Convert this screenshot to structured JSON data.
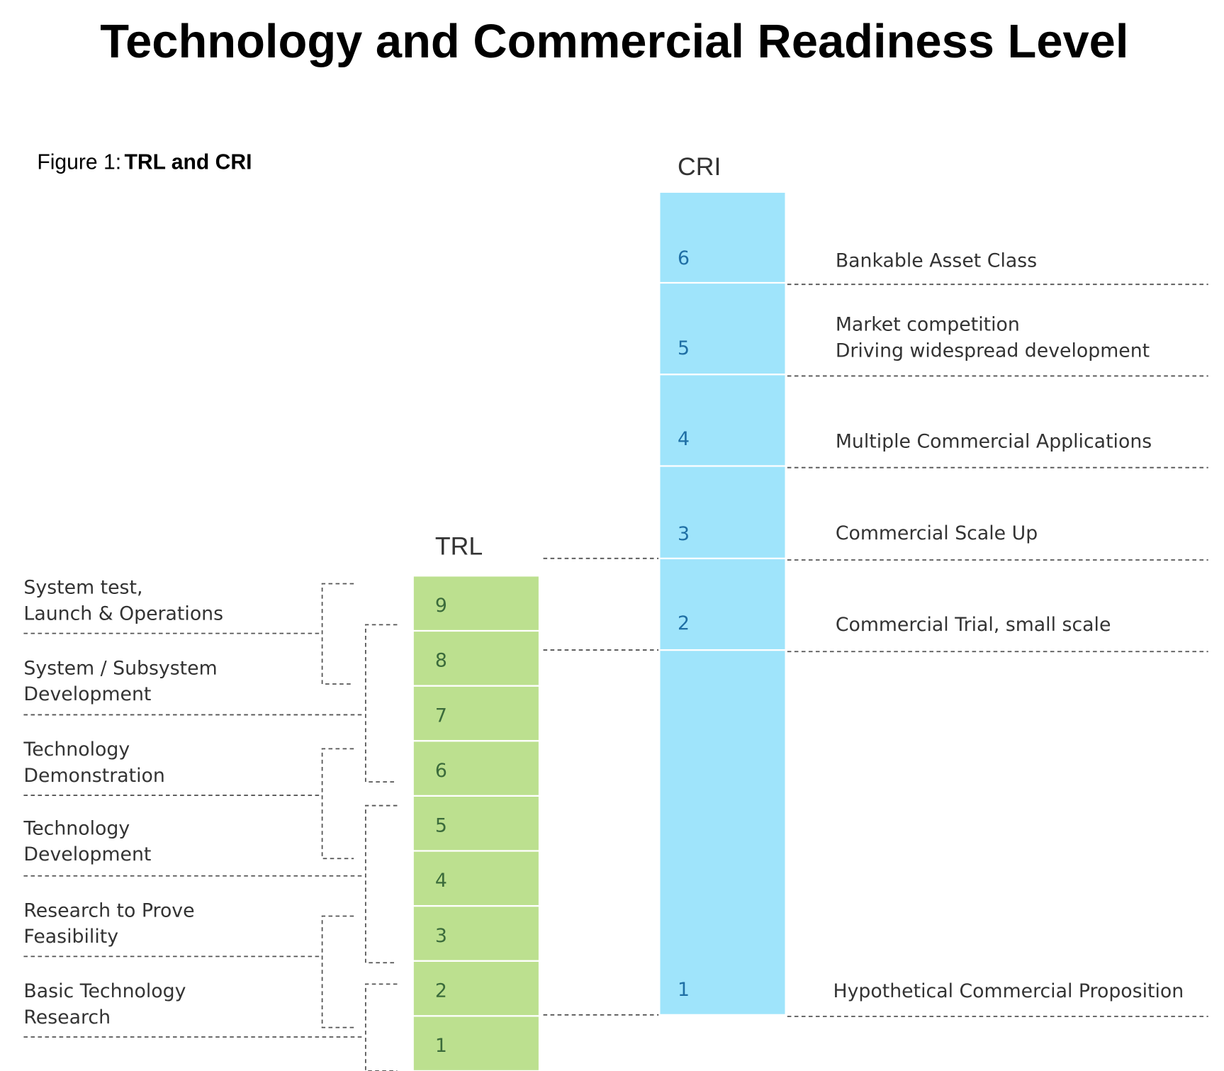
{
  "title": "Technology and Commercial Readiness Level",
  "figure": {
    "prefix": "Figure 1:",
    "name": "TRL and CRI"
  },
  "cri": {
    "label": "CRI",
    "levels": [
      1,
      2,
      3,
      4,
      5,
      6
    ],
    "stages": [
      [
        "Hypothetical Commercial Proposition"
      ],
      [
        "Commercial Trial, small scale"
      ],
      [
        "Commercial Scale Up"
      ],
      [
        "Multiple Commercial Applications"
      ],
      [
        "Market competition",
        "Driving widespread development"
      ],
      [
        "Bankable Asset Class"
      ]
    ]
  },
  "trl": {
    "label": "TRL",
    "levels": [
      1,
      2,
      3,
      4,
      5,
      6,
      7,
      8,
      9
    ],
    "stages": [
      [
        "Basic Technology",
        "Research"
      ],
      [
        "Research to Prove",
        "Feasibility"
      ],
      [
        "Technology",
        "Development"
      ],
      [
        "Technology",
        "Demonstration"
      ],
      [
        "System / Subsystem",
        "Development"
      ],
      [
        "System test,",
        "Launch & Operations"
      ]
    ]
  }
}
